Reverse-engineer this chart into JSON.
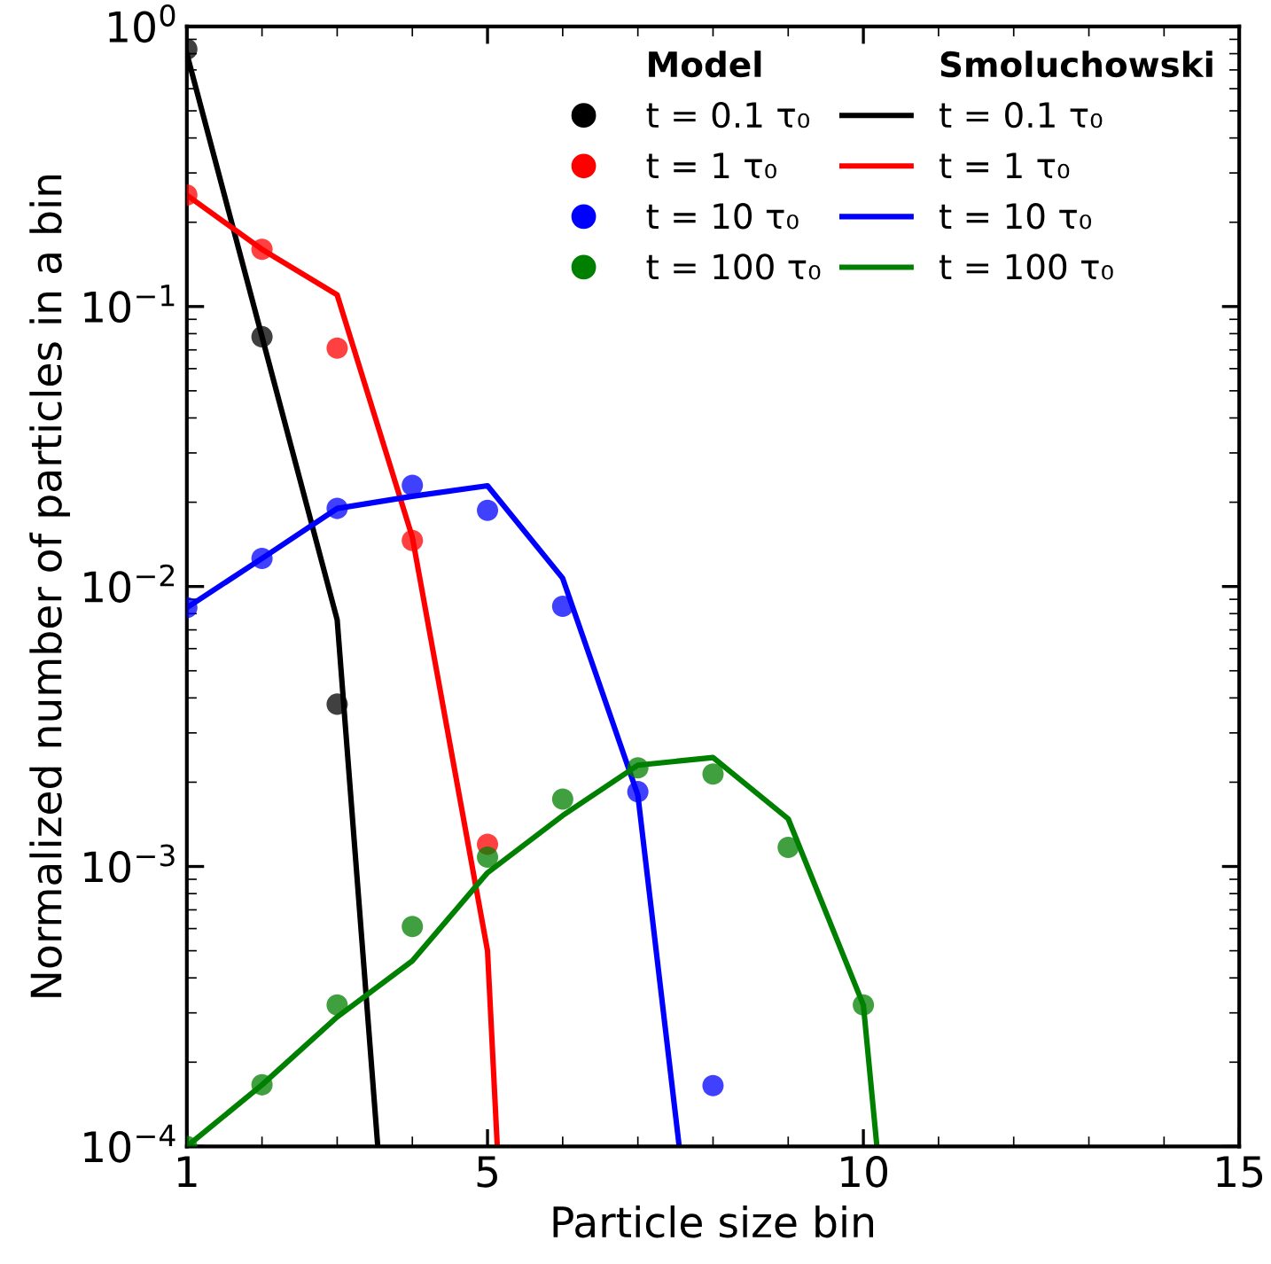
{
  "chart_data": {
    "type": "scatter",
    "xlabel": "Particle size bin",
    "ylabel": "Normalized number of particles in a bin",
    "log": "y",
    "xlim": [
      1,
      15
    ],
    "xticks": [
      1,
      5,
      10,
      15
    ],
    "ylim": [
      0.0001,
      1
    ],
    "yticks": [
      {
        "value": 0.0001,
        "label": "10$^{−4}$"
      },
      {
        "value": 0.001,
        "label": "10$^{−3}$"
      },
      {
        "value": 0.01,
        "label": "10$^{−2}$"
      },
      {
        "value": 0.1,
        "label": "10$^{−1}$"
      },
      {
        "value": 1,
        "label": "10$^{0}$"
      }
    ],
    "grid": false,
    "legend": "top right",
    "annotations": [
      "Model",
      "Smoluchowski"
    ],
    "series": [
      {
        "name": "t = 0.1 τ₀",
        "marker": "circle",
        "color": "#000000",
        "x": [
          1,
          2,
          3
        ],
        "values": [
          0.83,
          0.078,
          0.0038
        ]
      },
      {
        "name": "t = 1 τ₀",
        "marker": "circle",
        "color": "#ff0000",
        "x": [
          1,
          2,
          3,
          4,
          5
        ],
        "values": [
          0.25,
          0.16,
          0.071,
          0.0146,
          0.0012
        ]
      },
      {
        "name": "t = 10 τ₀",
        "marker": "circle",
        "color": "#0000ff",
        "x": [
          1,
          2,
          3,
          4,
          5,
          6,
          7,
          8
        ],
        "values": [
          0.0084,
          0.0126,
          0.019,
          0.023,
          0.0187,
          0.0085,
          0.00185,
          0.000165
        ]
      },
      {
        "name": "t = 100 τ₀",
        "marker": "circle",
        "color": "#008000",
        "x": [
          1,
          2,
          3,
          4,
          5,
          6,
          7,
          8,
          9,
          10
        ],
        "values": [
          0.0001,
          0.000166,
          0.00032,
          0.00061,
          0.00108,
          0.00174,
          0.00225,
          0.00214,
          0.00117,
          0.00032
        ]
      },
      {
        "name": "t = 0.1 τ₀",
        "type": "line",
        "marker": "none",
        "color": "#000000",
        "x": [
          1,
          2,
          3,
          3.54
        ],
        "values": [
          0.8,
          0.078,
          0.0076,
          0.0001
        ]
      },
      {
        "name": "t = 1 τ₀",
        "type": "line",
        "marker": "none",
        "color": "#ff0000",
        "x": [
          1,
          2,
          3,
          4,
          5,
          5.13
        ],
        "values": [
          0.25,
          0.16,
          0.11,
          0.015,
          0.0005,
          0.0001
        ]
      },
      {
        "name": "t = 10 τ₀",
        "type": "line",
        "marker": "none",
        "color": "#0000ff",
        "x": [
          1,
          2,
          3,
          4,
          5,
          6,
          7,
          7.55
        ],
        "values": [
          0.0084,
          0.0126,
          0.019,
          0.021,
          0.0229,
          0.0107,
          0.0018,
          0.0001
        ]
      },
      {
        "name": "t = 100 τ₀",
        "type": "line",
        "marker": "none",
        "color": "#008000",
        "x": [
          1,
          2,
          3,
          4,
          5,
          6,
          7,
          8,
          9,
          10,
          10.18
        ],
        "values": [
          0.0001,
          0.000166,
          0.00029,
          0.00046,
          0.00095,
          0.00152,
          0.0023,
          0.00245,
          0.00148,
          0.00032,
          0.0001
        ]
      }
    ]
  }
}
